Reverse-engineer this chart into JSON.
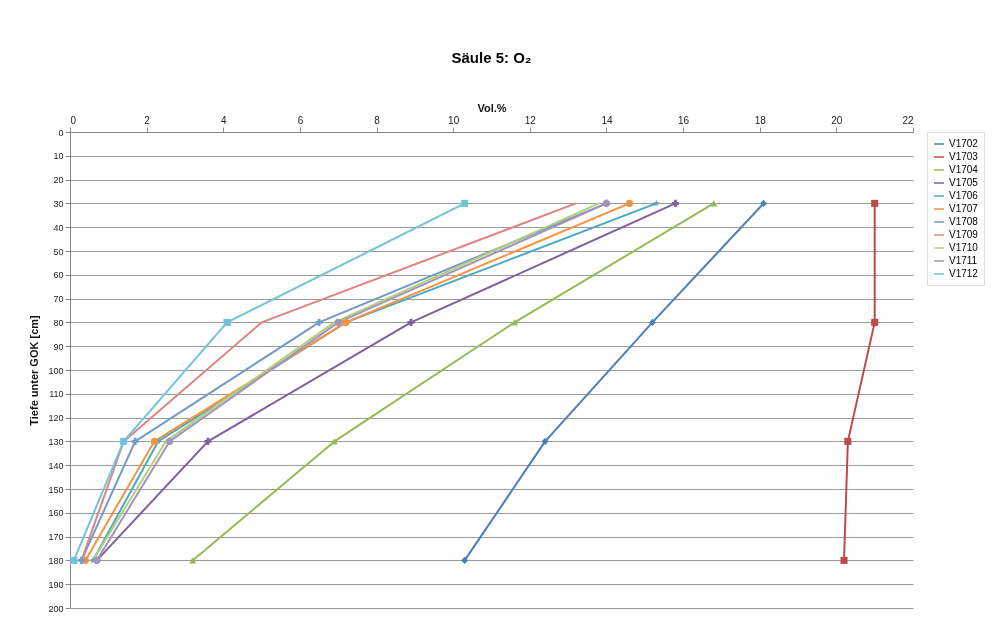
{
  "chart_data": {
    "type": "line",
    "title": "Säule 5: O₂",
    "xlabel": "Vol.%",
    "ylabel": "Tiefe unter GOK [cm]",
    "orientation": "horizontal",
    "x": [
      30,
      80,
      130,
      180
    ],
    "xlim": [
      0,
      22
    ],
    "xticks": [
      0,
      2,
      4,
      6,
      8,
      10,
      12,
      14,
      16,
      18,
      20,
      22
    ],
    "ylim": [
      200,
      0
    ],
    "yticks": [
      0,
      10,
      20,
      30,
      40,
      50,
      60,
      70,
      80,
      90,
      100,
      110,
      120,
      130,
      140,
      150,
      160,
      170,
      180,
      190,
      200
    ],
    "grid": "y",
    "legend": "right",
    "series": [
      {
        "name": "V1702",
        "color": "#4a7ebb",
        "marker": "diamond",
        "values": [
          18.1,
          15.2,
          12.4,
          10.3
        ]
      },
      {
        "name": "V1703",
        "color": "#be4b48",
        "marker": "square",
        "values": [
          21.0,
          21.0,
          20.3,
          20.2
        ]
      },
      {
        "name": "V1704",
        "color": "#98b954",
        "marker": "triangle",
        "values": [
          16.8,
          11.6,
          6.9,
          3.2
        ]
      },
      {
        "name": "V1705",
        "color": "#7d60a0",
        "marker": "cross",
        "values": [
          15.8,
          8.9,
          3.6,
          0.7
        ]
      },
      {
        "name": "V1706",
        "color": "#46aac5",
        "marker": "star",
        "values": [
          15.3,
          7.2,
          2.3,
          0.6
        ]
      },
      {
        "name": "V1707",
        "color": "#f69240",
        "marker": "circle",
        "values": [
          14.6,
          7.2,
          2.2,
          0.4
        ]
      },
      {
        "name": "V1708",
        "color": "#729aca",
        "marker": "cross",
        "values": [
          14.0,
          6.5,
          1.7,
          0.3
        ]
      },
      {
        "name": "V1709",
        "color": "#dc8482",
        "marker": "none",
        "values": [
          13.2,
          5.0,
          1.4,
          0.3
        ]
      },
      {
        "name": "V1710",
        "color": "#b3d079",
        "marker": "none",
        "values": [
          13.8,
          6.9,
          2.5,
          0.6
        ]
      },
      {
        "name": "V1711",
        "color": "#a493bc",
        "marker": "circle",
        "values": [
          14.0,
          7.0,
          2.6,
          0.7
        ]
      },
      {
        "name": "V1712",
        "color": "#6fc4da",
        "marker": "square",
        "values": [
          10.3,
          4.1,
          1.4,
          0.1
        ]
      }
    ]
  }
}
